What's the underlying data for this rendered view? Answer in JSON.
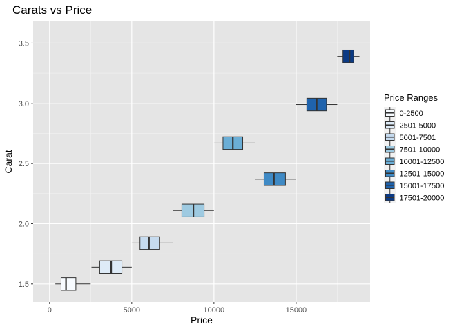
{
  "chart_data": {
    "type": "boxplot",
    "title": "Carats vs Price",
    "xlabel": "Price",
    "ylabel": "Carat",
    "xlim": [
      -1000,
      19500
    ],
    "ylim": [
      1.35,
      3.68
    ],
    "xticks": [
      0,
      5000,
      10000,
      15000
    ],
    "xtick_labels": [
      "0",
      "5000",
      "10000",
      "15000"
    ],
    "yticks": [
      1.5,
      2.0,
      2.5,
      3.0,
      3.5
    ],
    "ytick_labels": [
      "1.5",
      "2.0",
      "2.5",
      "3.0",
      "3.5"
    ],
    "grid": true,
    "legend": {
      "title": "Price Ranges",
      "placement": "right"
    },
    "series": [
      {
        "name": "0-2500",
        "y": 1.5,
        "min": 350,
        "q1": 700,
        "median": 1000,
        "q3": 1600,
        "max": 2500,
        "color": "#f7fbff"
      },
      {
        "name": "2501-5000",
        "y": 1.64,
        "min": 2550,
        "q1": 3050,
        "median": 3750,
        "q3": 4400,
        "max": 5000,
        "color": "#deebf7"
      },
      {
        "name": "5001-7501",
        "y": 1.84,
        "min": 5000,
        "q1": 5500,
        "median": 6050,
        "q3": 6700,
        "max": 7500,
        "color": "#c6dbef"
      },
      {
        "name": "7501-10000",
        "y": 2.11,
        "min": 7500,
        "q1": 8050,
        "median": 8750,
        "q3": 9400,
        "max": 10000,
        "color": "#9ecae1"
      },
      {
        "name": "10001-12500",
        "y": 2.67,
        "min": 10000,
        "q1": 10550,
        "median": 11150,
        "q3": 11750,
        "max": 12500,
        "color": "#6baed6"
      },
      {
        "name": "12501-15000",
        "y": 2.37,
        "min": 12500,
        "q1": 13050,
        "median": 13650,
        "q3": 14350,
        "max": 15000,
        "color": "#3f8ac5"
      },
      {
        "name": "15001-17500",
        "y": 2.99,
        "min": 15000,
        "q1": 15650,
        "median": 16250,
        "q3": 16850,
        "max": 17500,
        "color": "#1f63ad"
      },
      {
        "name": "17501-20000",
        "y": 3.39,
        "min": 17500,
        "q1": 17850,
        "median": 18250,
        "q3": 18500,
        "max": 18850,
        "color": "#0b3a84"
      }
    ]
  }
}
